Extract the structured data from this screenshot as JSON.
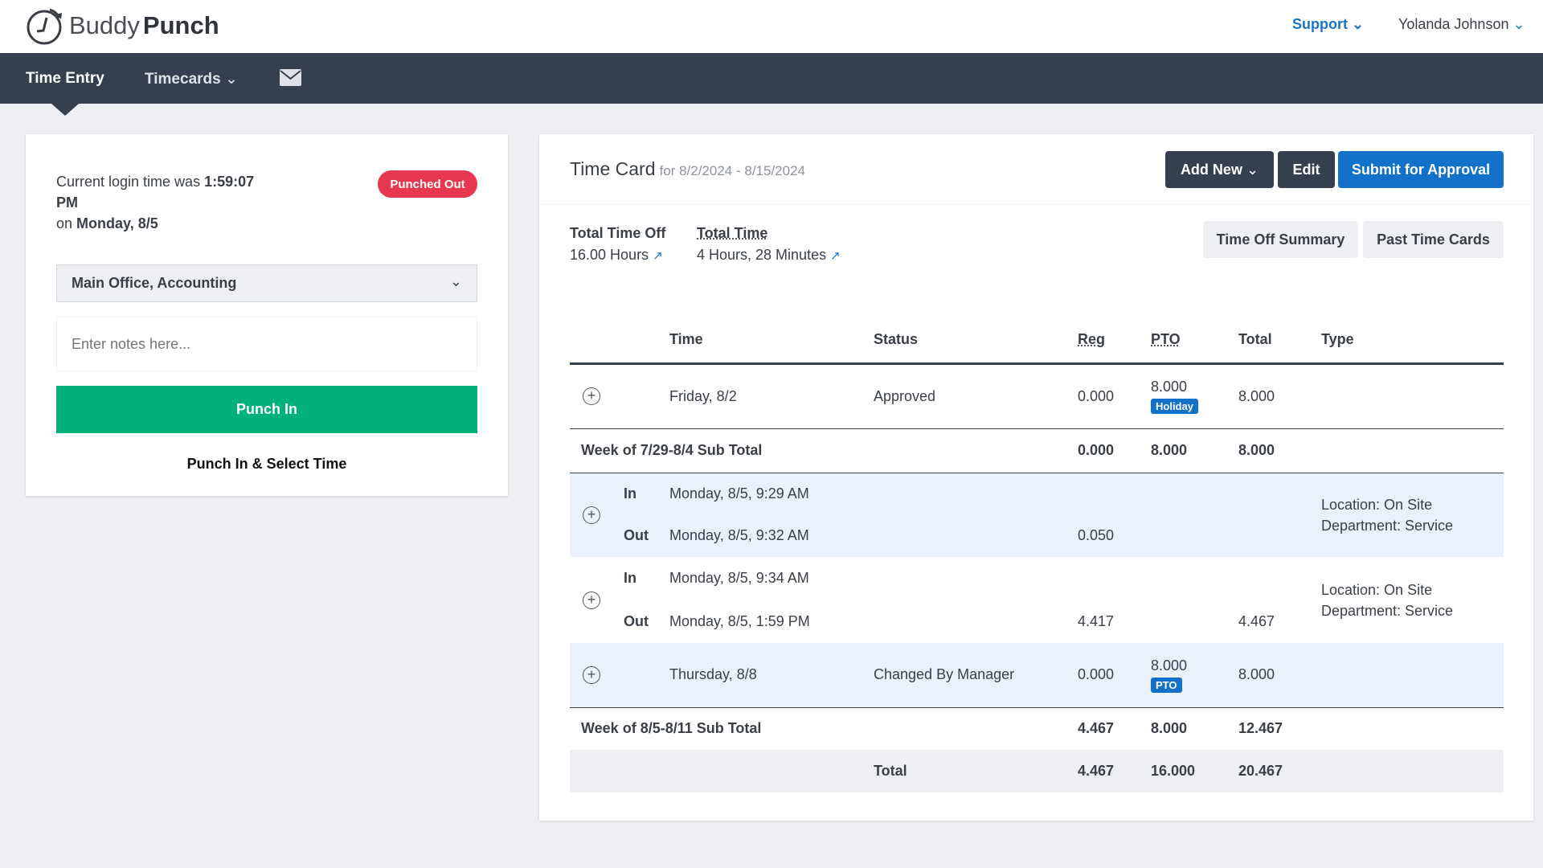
{
  "header": {
    "logo_light": "Buddy",
    "logo_bold": "Punch",
    "support": "Support",
    "user": "Yolanda Johnson"
  },
  "nav": {
    "time_entry": "Time Entry",
    "timecards": "Timecards"
  },
  "punch_panel": {
    "login_prefix": "Current login time was",
    "login_time": "1:59:07",
    "login_ampm": "PM",
    "on": "on",
    "login_day": "Monday, 8/5",
    "status": "Punched Out",
    "location": "Main Office, Accounting",
    "notes_placeholder": "Enter notes here...",
    "punch_in": "Punch In",
    "punch_select": "Punch In & Select Time"
  },
  "timecard": {
    "title": "Time Card",
    "range": "for 8/2/2024 - 8/15/2024",
    "add_new": "Add New",
    "edit": "Edit",
    "submit": "Submit for Approval",
    "time_off_label": "Total Time Off",
    "time_off_value": "16.00 Hours",
    "total_time_label": "Total Time",
    "total_time_value": "4 Hours, 28 Minutes",
    "time_off_summary": "Time Off Summary",
    "past_cards": "Past Time Cards",
    "columns": [
      "Time",
      "Status",
      "Reg",
      "PTO",
      "Total",
      "Type"
    ],
    "rows": [
      {
        "time": "Friday, 8/2",
        "status": "Approved",
        "reg": "0.000",
        "pto": "8.000",
        "tag": "Holiday",
        "total": "8.000"
      },
      {
        "label": "Week of 7/29-8/4 Sub Total",
        "reg": "0.000",
        "pto": "8.000",
        "total": "8.000"
      },
      {
        "in_label": "In",
        "in_time": "Monday, 8/5, 9:29 AM",
        "out_label": "Out",
        "out_time": "Monday, 8/5, 9:32 AM",
        "reg": "0.050",
        "location": "Location: On Site",
        "department": "Department: Service"
      },
      {
        "in_label": "In",
        "in_time": "Monday, 8/5, 9:34 AM",
        "out_label": "Out",
        "out_time": "Monday, 8/5, 1:59 PM",
        "reg": "4.417",
        "total": "4.467",
        "location": "Location: On Site",
        "department": "Department: Service"
      },
      {
        "time": "Thursday, 8/8",
        "status": "Changed By Manager",
        "reg": "0.000",
        "pto": "8.000",
        "tag": "PTO",
        "total": "8.000"
      },
      {
        "label": "Week of 8/5-8/11 Sub Total",
        "reg": "4.467",
        "pto": "8.000",
        "total": "12.467"
      },
      {
        "label": "Total",
        "reg": "4.467",
        "pto": "16.000",
        "total": "20.467"
      }
    ]
  }
}
